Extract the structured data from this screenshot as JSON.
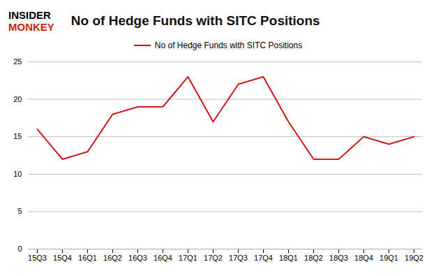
{
  "chart_data": {
    "type": "line",
    "title": "No of Hedge Funds with SITC Positions",
    "categories": [
      "15Q3",
      "15Q4",
      "16Q1",
      "16Q2",
      "16Q3",
      "16Q4",
      "17Q1",
      "17Q2",
      "17Q3",
      "17Q4",
      "18Q1",
      "18Q2",
      "18Q3",
      "18Q4",
      "19Q1",
      "19Q2"
    ],
    "series": [
      {
        "name": "No of Hedge Funds with SITC Positions",
        "color": "#cc0000",
        "values": [
          16,
          12,
          13,
          18,
          19,
          19,
          23,
          17,
          22,
          23,
          17,
          12,
          12,
          15,
          14,
          15
        ]
      }
    ],
    "ylim": [
      0,
      25
    ],
    "yticks": [
      0,
      5,
      10,
      15,
      20,
      25
    ],
    "grid": true,
    "legend": "top",
    "annotations": [
      {
        "text": "INSIDER",
        "color": "#000000"
      },
      {
        "text": "MONKEY",
        "color": "#cc2200"
      }
    ]
  }
}
